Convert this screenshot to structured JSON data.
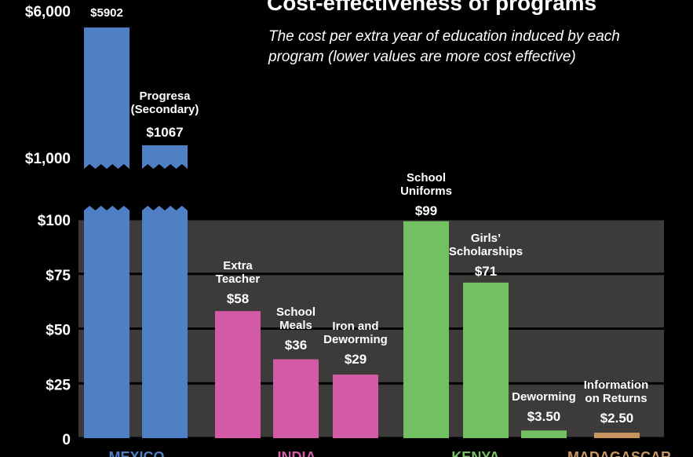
{
  "chart_data": {
    "type": "bar",
    "title": "Cost-effectiveness of programs",
    "subtitle": "The cost per extra year of education induced by each program (lower values are more cost effective)",
    "y_axis": {
      "upper_ticks": [
        "$6,000",
        "$1,000"
      ],
      "lower_ticks": [
        "$100",
        "$75",
        "$50",
        "$25",
        "0"
      ],
      "lower_range": [
        0,
        100
      ]
    },
    "grid": true,
    "bars": [
      {
        "category": "",
        "label": "",
        "value": 5902,
        "value_label": "$5902",
        "country": "MEXICO",
        "broken_axis": true
      },
      {
        "category": "Progresa (Secondary)",
        "label": "Progresa\n(Secondary)",
        "value": 1067,
        "value_label": "$1067",
        "country": "MEXICO",
        "broken_axis": true
      },
      {
        "category": "Extra Teacher",
        "label": "Extra\nTeacher",
        "value": 58,
        "value_label": "$58",
        "country": "INDIA"
      },
      {
        "category": "School Meals",
        "label": "School\nMeals",
        "value": 36,
        "value_label": "$36",
        "country": "INDIA"
      },
      {
        "category": "Iron and Deworming",
        "label": "Iron and\nDeworming",
        "value": 29,
        "value_label": "$29",
        "country": "INDIA"
      },
      {
        "category": "School Uniforms",
        "label": "School\nUniforms",
        "value": 99,
        "value_label": "$99",
        "country": "KENYA"
      },
      {
        "category": "Girls' Scholarships",
        "label": "Girls’\nScholarships",
        "value": 71,
        "value_label": "$71",
        "country": "KENYA"
      },
      {
        "category": "Deworming",
        "label": "Deworming",
        "value": 3.5,
        "value_label": "$3.50",
        "country": "KENYA"
      },
      {
        "category": "Information on Returns",
        "label": "Information\non Returns",
        "value": 2.5,
        "value_label": "$2.50",
        "country": "MADAGASCAR"
      }
    ],
    "countries": [
      {
        "name": "MEXICO",
        "color": "#4f7fc4"
      },
      {
        "name": "INDIA",
        "color": "#d35aa6"
      },
      {
        "name": "KENYA",
        "color": "#72c061"
      },
      {
        "name": "MADAGASCAR",
        "color": "#c8955f"
      }
    ]
  }
}
